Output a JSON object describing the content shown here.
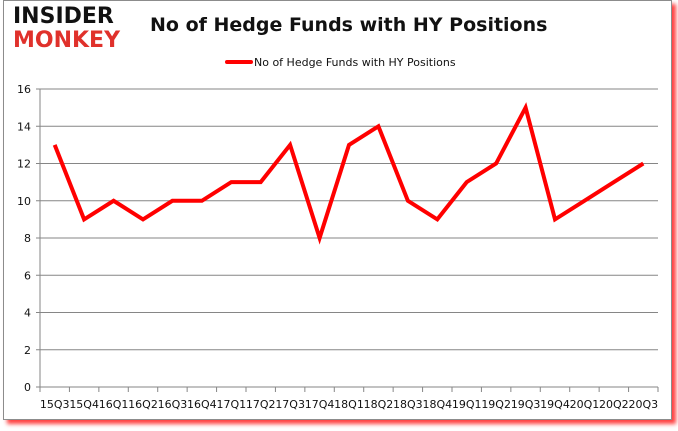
{
  "logo": {
    "line1": "INSIDER",
    "line2": "MONKEY"
  },
  "chart_data": {
    "type": "line",
    "title": "No of Hedge Funds with HY Positions",
    "xlabel": "",
    "ylabel": "",
    "ylim": [
      0,
      16
    ],
    "yticks": [
      0,
      2,
      4,
      6,
      8,
      10,
      12,
      14,
      16
    ],
    "grid": true,
    "legend_position": "top",
    "categories": [
      "15Q3",
      "15Q4",
      "16Q1",
      "16Q2",
      "16Q3",
      "16Q4",
      "17Q1",
      "17Q2",
      "17Q3",
      "17Q4",
      "18Q1",
      "18Q2",
      "18Q3",
      "18Q4",
      "19Q1",
      "19Q2",
      "19Q3",
      "19Q4",
      "20Q1",
      "20Q2",
      "20Q3"
    ],
    "series": [
      {
        "name": "No of Hedge Funds with HY Positions",
        "color": "#ff0000",
        "values": [
          13,
          9,
          10,
          9,
          10,
          10,
          11,
          11,
          13,
          8,
          13,
          14,
          10,
          9,
          11,
          12,
          15,
          9,
          10,
          11,
          12
        ]
      }
    ]
  }
}
